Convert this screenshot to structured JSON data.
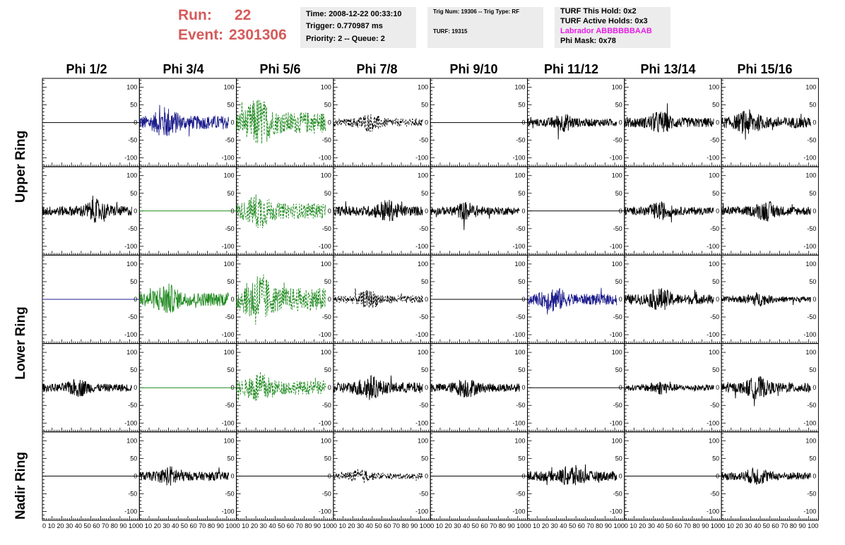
{
  "header": {
    "run_label": "Run:",
    "run_value": "22",
    "event_label": "Event:",
    "event_value": "2301306"
  },
  "info_time": {
    "time": "Time: 2008-12-22 00:33:10",
    "trigger": "Trigger: 0.770987 ms",
    "priority": "Priority: 2 -- Queue: 2"
  },
  "info_trig": {
    "trig": "Trig Num: 19306 -- Trig Type: RF",
    "turf": "TURF: 19315"
  },
  "info_turf": {
    "this_hold": "TURF This Hold: 0x2",
    "active_holds": "TURF Active Holds: 0x3",
    "labrador": "Labrador ABBBBBBAAB",
    "phi_mask": "Phi Mask: 0x78"
  },
  "colors": {
    "run_text": "#d65a5a",
    "labrador_text": "#e61ee6",
    "info_bg": "#ececec",
    "trace_black": "#000000",
    "trace_blue": "#1c1c8c",
    "trace_green": "#1f8a1f"
  },
  "columns": [
    "Phi 1/2",
    "Phi 3/4",
    "Phi 5/6",
    "Phi 7/8",
    "Phi 9/10",
    "Phi 11/12",
    "Phi 13/14",
    "Phi 15/16"
  ],
  "rows": [
    "Upper Ring",
    "Lower Ring",
    "Nadir Ring"
  ],
  "axes": {
    "y_ticks": [
      "100",
      "50",
      "0",
      "-50",
      "-100"
    ],
    "y_range": [
      -125,
      125
    ],
    "x_range": [
      0,
      100
    ],
    "x_labels": "0 10 20 30 40 50 60 70 80 90 100"
  },
  "panels": [
    [
      {
        "style": "flat",
        "color": "black"
      },
      {
        "style": "noise",
        "color": "blue",
        "amp": 35,
        "dashed": false,
        "peak": 0.3
      },
      {
        "style": "noise",
        "color": "green",
        "amp": 55,
        "dashed": true,
        "peak": 0.25
      },
      {
        "style": "noise",
        "color": "black",
        "amp": 20,
        "dashed": true,
        "peak": 0.4
      },
      {
        "style": "flat",
        "color": "black"
      },
      {
        "style": "noise",
        "color": "black",
        "amp": 20,
        "dashed": false,
        "peak": 0.4
      },
      {
        "style": "noise",
        "color": "black",
        "amp": 25,
        "dashed": false,
        "peak": 0.4
      },
      {
        "style": "noise",
        "color": "black",
        "amp": 28,
        "dashed": false,
        "peak": 0.3
      }
    ],
    [
      {
        "style": "noise",
        "color": "black",
        "amp": 25,
        "dashed": false,
        "peak": 0.6
      },
      {
        "style": "flat",
        "color": "green"
      },
      {
        "style": "noise",
        "color": "green",
        "amp": 40,
        "dashed": true,
        "peak": 0.25
      },
      {
        "style": "noise",
        "color": "black",
        "amp": 25,
        "dashed": false,
        "peak": 0.6
      },
      {
        "style": "noise",
        "color": "black",
        "amp": 20,
        "dashed": false,
        "peak": 0.4
      },
      {
        "style": "flat",
        "color": "black"
      },
      {
        "style": "noise",
        "color": "black",
        "amp": 20,
        "dashed": false,
        "peak": 0.4
      },
      {
        "style": "noise",
        "color": "black",
        "amp": 22,
        "dashed": false,
        "peak": 0.5
      }
    ],
    [
      {
        "style": "flat",
        "color": "blue"
      },
      {
        "style": "noise",
        "color": "green",
        "amp": 35,
        "dashed": false,
        "peak": 0.3
      },
      {
        "style": "noise",
        "color": "green",
        "amp": 60,
        "dashed": true,
        "peak": 0.25
      },
      {
        "style": "noise",
        "color": "black",
        "amp": 20,
        "dashed": true,
        "peak": 0.4
      },
      {
        "style": "flat",
        "color": "black"
      },
      {
        "style": "noise",
        "color": "blue",
        "amp": 28,
        "dashed": false,
        "peak": 0.3
      },
      {
        "style": "noise",
        "color": "black",
        "amp": 25,
        "dashed": false,
        "peak": 0.4
      },
      {
        "style": "noise",
        "color": "black",
        "amp": 15,
        "dashed": false,
        "peak": 0.4
      }
    ],
    [
      {
        "style": "noise",
        "color": "black",
        "amp": 20,
        "dashed": false,
        "peak": 0.4
      },
      {
        "style": "flat",
        "color": "green"
      },
      {
        "style": "noise",
        "color": "green",
        "amp": 35,
        "dashed": true,
        "peak": 0.25
      },
      {
        "style": "noise",
        "color": "black",
        "amp": 28,
        "dashed": false,
        "peak": 0.4
      },
      {
        "style": "noise",
        "color": "black",
        "amp": 22,
        "dashed": false,
        "peak": 0.4
      },
      {
        "style": "flat",
        "color": "black"
      },
      {
        "style": "noise",
        "color": "black",
        "amp": 15,
        "dashed": false,
        "peak": 0.4
      },
      {
        "style": "noise",
        "color": "black",
        "amp": 25,
        "dashed": false,
        "peak": 0.4
      }
    ],
    [
      {
        "style": "flat",
        "color": "black"
      },
      {
        "style": "noise",
        "color": "black",
        "amp": 22,
        "dashed": false,
        "peak": 0.35
      },
      {
        "style": "flat",
        "color": "black"
      },
      {
        "style": "noise",
        "color": "black",
        "amp": 15,
        "dashed": true,
        "peak": 0.3
      },
      {
        "style": "flat",
        "color": "black"
      },
      {
        "style": "noise",
        "color": "black",
        "amp": 25,
        "dashed": false,
        "peak": 0.5
      },
      {
        "style": "flat",
        "color": "black"
      },
      {
        "style": "noise",
        "color": "black",
        "amp": 20,
        "dashed": false,
        "peak": 0.4
      }
    ]
  ]
}
